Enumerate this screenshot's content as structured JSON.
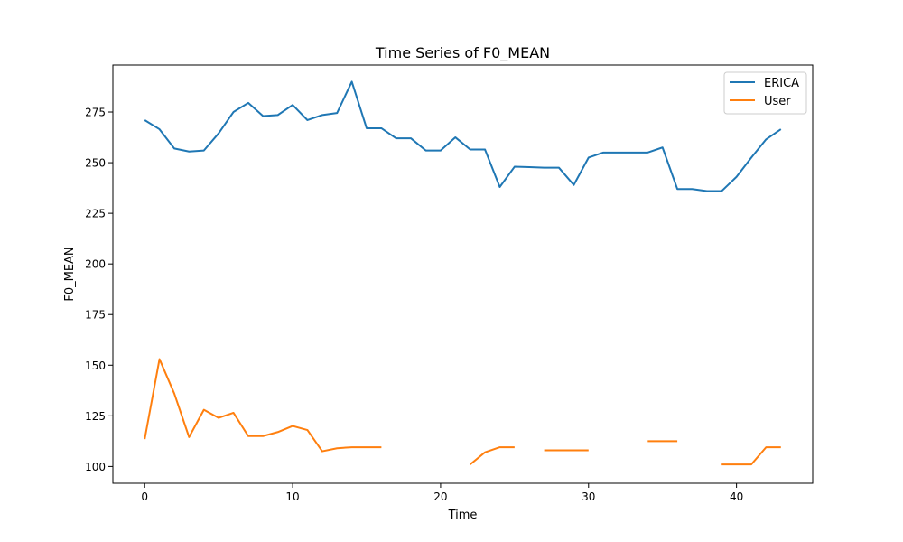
{
  "chart_data": {
    "type": "line",
    "title": "Time Series of F0_MEAN",
    "xlabel": "Time",
    "ylabel": "F0_MEAN",
    "xlim": [
      -2.15,
      45.15
    ],
    "ylim": [
      91.7,
      298.2
    ],
    "xticks": [
      0,
      10,
      20,
      30,
      40
    ],
    "yticks": [
      100,
      125,
      150,
      175,
      200,
      225,
      250,
      275
    ],
    "grid": false,
    "legend_position": "upper right",
    "series": [
      {
        "name": "ERICA",
        "color": "#1f77b4",
        "x": [
          0,
          1,
          2,
          3,
          4,
          5,
          6,
          7,
          8,
          9,
          10,
          11,
          12,
          13,
          14,
          15,
          16,
          17,
          18,
          19,
          20,
          21,
          22,
          23,
          24,
          25,
          26,
          27,
          28,
          29,
          30,
          31,
          32,
          33,
          34,
          35,
          36,
          37,
          38,
          39,
          40,
          41,
          42,
          43
        ],
        "y": [
          271,
          266.5,
          257,
          255.5,
          256,
          264.5,
          275,
          279.5,
          273,
          273.5,
          278.5,
          271,
          273.5,
          274.5,
          290,
          267,
          267,
          262,
          262,
          256,
          256,
          262.5,
          256.5,
          256.5,
          238,
          248,
          247.8,
          247.5,
          247.5,
          239,
          252.5,
          255,
          255,
          255,
          255,
          257.5,
          237,
          237,
          236,
          236,
          243,
          252.5,
          261.5,
          266.5
        ]
      },
      {
        "name": "User",
        "color": "#ff7f0e",
        "x": [
          0,
          1,
          2,
          3,
          4,
          5,
          6,
          7,
          8,
          9,
          10,
          11,
          12,
          13,
          14,
          15,
          16,
          17,
          18,
          19,
          20,
          21,
          22,
          23,
          24,
          25,
          26,
          27,
          28,
          29,
          30,
          31,
          32,
          33,
          34,
          35,
          36,
          37,
          38,
          39,
          40,
          41,
          42,
          43
        ],
        "y": [
          113.5,
          153,
          136,
          114.5,
          128,
          124,
          126.5,
          115,
          115,
          117,
          120,
          118,
          107.5,
          109,
          109.5,
          109.5,
          109.5,
          null,
          null,
          null,
          null,
          null,
          101,
          107,
          109.5,
          109.5,
          null,
          108,
          108,
          108,
          108,
          null,
          null,
          null,
          112.5,
          112.5,
          112.5,
          null,
          null,
          101,
          101,
          101,
          109.5,
          109.5
        ]
      }
    ]
  }
}
